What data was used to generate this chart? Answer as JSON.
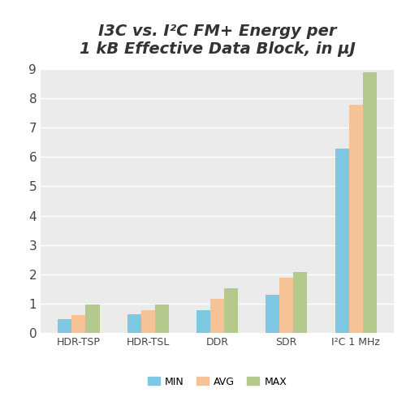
{
  "title": "I3C vs. I²C FM+ Energy per\n1 kB Effective Data Block, in μJ",
  "categories": [
    "HDR-TSP",
    "HDR-TSL",
    "DDR",
    "SDR",
    "I²C 1 MHz"
  ],
  "series": {
    "MIN": [
      0.48,
      0.65,
      0.78,
      1.3,
      6.3
    ],
    "AVG": [
      0.62,
      0.78,
      1.15,
      1.88,
      7.78
    ],
    "MAX": [
      0.97,
      0.97,
      1.52,
      2.08,
      8.88
    ]
  },
  "colors": {
    "MIN": "#7EC8E3",
    "AVG": "#F5C396",
    "MAX": "#B5C98E"
  },
  "ylim": [
    0,
    9
  ],
  "yticks": [
    0,
    1,
    2,
    3,
    4,
    5,
    6,
    7,
    8,
    9
  ],
  "plot_bg": "#ebebeb",
  "fig_bg": "#ffffff",
  "title_fontsize": 14,
  "bar_width": 0.2,
  "legend_fontsize": 9,
  "tick_fontsize": 11,
  "xtick_fontsize": 9
}
